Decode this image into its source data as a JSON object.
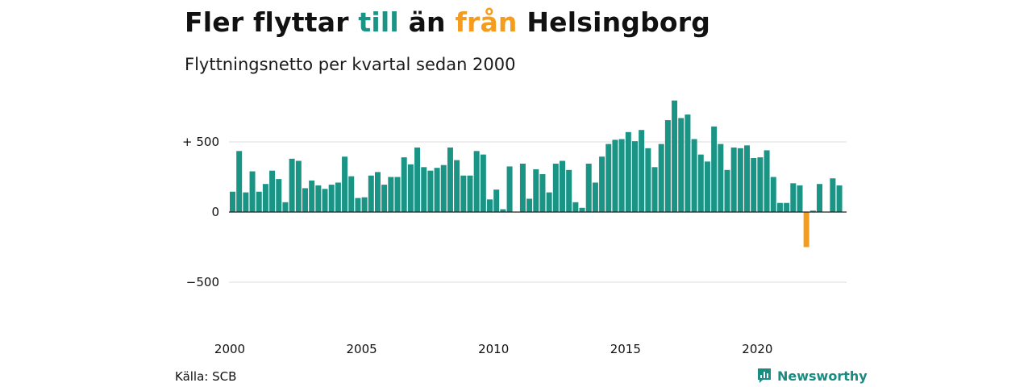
{
  "header": {
    "title_part1": "Fler flyttar ",
    "title_part2": "till",
    "title_part3": " än ",
    "title_part4": "från",
    "title_part5": " Helsingborg",
    "subtitle": "Flyttningsnetto per kvartal sedan 2000"
  },
  "footer": {
    "source": "Källa: SCB",
    "brand": "Newsworthy"
  },
  "colors": {
    "positive": "#1a9485",
    "negative": "#f39c1d",
    "grid": "#dddddd",
    "brand": "#1a8c82"
  },
  "chart_data": {
    "type": "bar",
    "title": "Fler flyttar till än från Helsingborg",
    "subtitle": "Flyttningsnetto per kvartal sedan 2000",
    "xlabel": "",
    "ylabel": "",
    "x_start": 2000.0,
    "x_step": 0.25,
    "xlim": [
      2000,
      2023.5
    ],
    "ylim": [
      -700,
      800
    ],
    "y_ticks": [
      500,
      0,
      -500
    ],
    "y_tick_labels": [
      "+ 500",
      "0",
      "−500"
    ],
    "x_ticks": [
      2000,
      2005,
      2010,
      2015,
      2020
    ],
    "x_tick_labels": [
      "2000",
      "2005",
      "2010",
      "2015",
      "2020"
    ],
    "grid": true,
    "values": [
      145,
      435,
      140,
      290,
      145,
      200,
      295,
      235,
      70,
      380,
      365,
      170,
      225,
      190,
      165,
      195,
      210,
      395,
      255,
      100,
      105,
      260,
      285,
      195,
      250,
      250,
      390,
      340,
      460,
      320,
      295,
      315,
      335,
      460,
      370,
      260,
      260,
      435,
      410,
      90,
      160,
      20,
      325,
      0,
      345,
      95,
      305,
      270,
      140,
      345,
      365,
      300,
      70,
      30,
      345,
      210,
      395,
      485,
      515,
      520,
      570,
      505,
      585,
      455,
      320,
      485,
      655,
      795,
      670,
      695,
      520,
      410,
      360,
      610,
      485,
      300,
      460,
      455,
      475,
      385,
      390,
      440,
      250,
      65,
      65,
      205,
      190,
      -250,
      10,
      200,
      0,
      240,
      190
    ]
  }
}
